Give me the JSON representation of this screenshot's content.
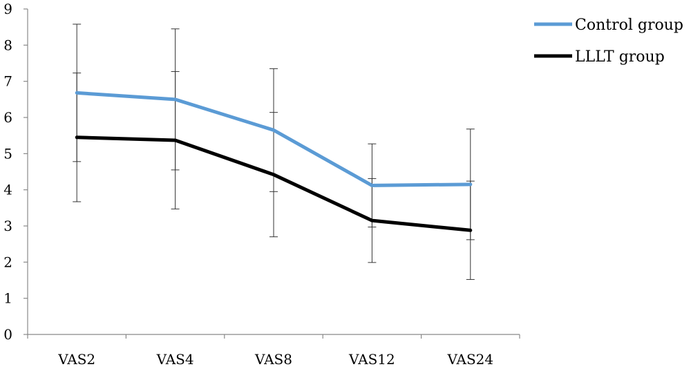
{
  "chart_data": {
    "type": "line",
    "categories": [
      "VAS2",
      "VAS4",
      "VAS8",
      "VAS12",
      "VAS24"
    ],
    "ylim": [
      0,
      9
    ],
    "yticks": [
      0,
      1,
      2,
      3,
      4,
      5,
      6,
      7,
      8,
      9
    ],
    "grid": false,
    "legend": "right",
    "series": [
      {
        "name": "Control group",
        "color": "#5b9bd5",
        "values": [
          6.68,
          6.5,
          5.65,
          4.12,
          4.15
        ],
        "error": [
          1.9,
          1.95,
          1.7,
          1.15,
          1.53
        ]
      },
      {
        "name": "LLLT group",
        "color": "#000000",
        "values": [
          5.45,
          5.37,
          4.42,
          3.15,
          2.88
        ],
        "error": [
          1.78,
          1.9,
          1.72,
          1.16,
          1.36
        ]
      }
    ]
  }
}
